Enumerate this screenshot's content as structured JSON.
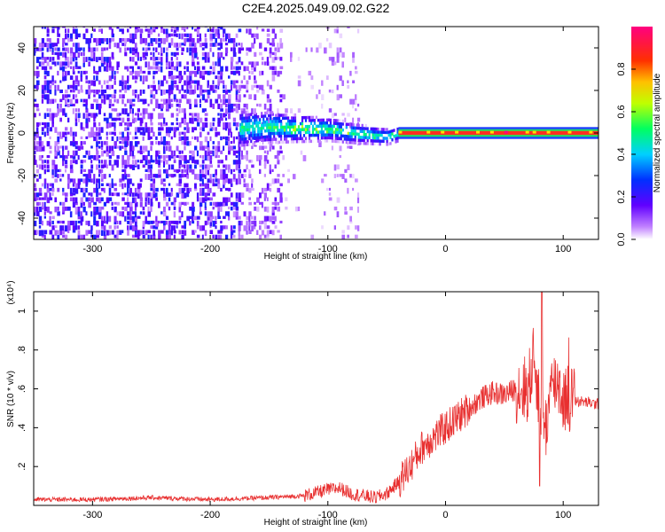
{
  "title": "C2E4.2025.049.09.02.G22",
  "chart_data": [
    {
      "type": "heatmap",
      "xlabel": "Height of straight line (km)",
      "ylabel": "Frequency (Hz)",
      "xlim": [
        -350,
        130
      ],
      "ylim": [
        -50,
        50
      ],
      "xticks": [
        -300,
        -200,
        -100,
        0,
        100
      ],
      "yticks": [
        -40,
        -20,
        0,
        20,
        40
      ],
      "colorbar": {
        "label": "Normalized spectral amplitude",
        "range": [
          0,
          1
        ],
        "ticks": [
          "0.0",
          "0.2",
          "0.4",
          "0.6",
          "0.8"
        ],
        "colors": [
          "#ffffff",
          "#a000ff",
          "#3000ff",
          "#00d0ff",
          "#00ff40",
          "#ffff00",
          "#ff8000",
          "#ff0000",
          "#ff0080"
        ]
      },
      "regions": [
        {
          "name": "noise",
          "x_range": [
            -350,
            -140
          ],
          "freq_range": [
            -50,
            50
          ],
          "amplitude": 0.12
        },
        {
          "name": "noise-band",
          "x_range": [
            -100,
            -75
          ],
          "freq_range": [
            -50,
            50
          ],
          "amplitude": 0.08
        },
        {
          "name": "signal-onset",
          "x_range": [
            -175,
            -40
          ],
          "freq_range": [
            -8,
            8
          ],
          "amplitude": 0.25
        },
        {
          "name": "tracked-line",
          "x_range": [
            -40,
            130
          ],
          "freq_range": [
            -2,
            2
          ],
          "amplitude": 0.95
        }
      ],
      "signal_track": {
        "x": [
          -175,
          -150,
          -125,
          -100,
          -75,
          -50,
          -40,
          -20,
          0,
          20,
          40,
          60,
          80,
          100,
          130
        ],
        "freq": [
          1.5,
          2,
          1.5,
          1,
          -1,
          -2.5,
          -1,
          0.5,
          1,
          0.5,
          0.5,
          0.5,
          0.5,
          0.5,
          0.5
        ]
      }
    },
    {
      "type": "line",
      "xlabel": "Height of straight line (km)",
      "ylabel": "SNR (10 * v/v)",
      "y_multiplier": "(x10⁴)",
      "xlim": [
        -350,
        130
      ],
      "ylim": [
        0,
        1.1
      ],
      "xticks": [
        -300,
        -200,
        -100,
        0,
        100
      ],
      "yticks": [
        0.2,
        0.4,
        0.6,
        0.8,
        1
      ],
      "color": "#e83030",
      "series": [
        {
          "x": [
            -350,
            -300,
            -250,
            -200,
            -150,
            -120,
            -100,
            -90,
            -80,
            -70,
            -60,
            -50,
            -40,
            -30,
            -20,
            -10,
            0,
            10,
            20,
            30,
            40,
            50,
            60,
            70,
            75,
            80,
            85,
            90,
            95,
            100,
            105,
            110,
            120,
            130
          ],
          "values": [
            0.03,
            0.03,
            0.04,
            0.03,
            0.04,
            0.05,
            0.08,
            0.09,
            0.06,
            0.05,
            0.04,
            0.06,
            0.12,
            0.2,
            0.3,
            0.35,
            0.4,
            0.45,
            0.5,
            0.55,
            0.58,
            0.57,
            0.6,
            0.6,
            0.75,
            0.55,
            0.4,
            0.6,
            0.65,
            0.55,
            0.56,
            0.54,
            0.53,
            0.52
          ]
        }
      ]
    }
  ]
}
